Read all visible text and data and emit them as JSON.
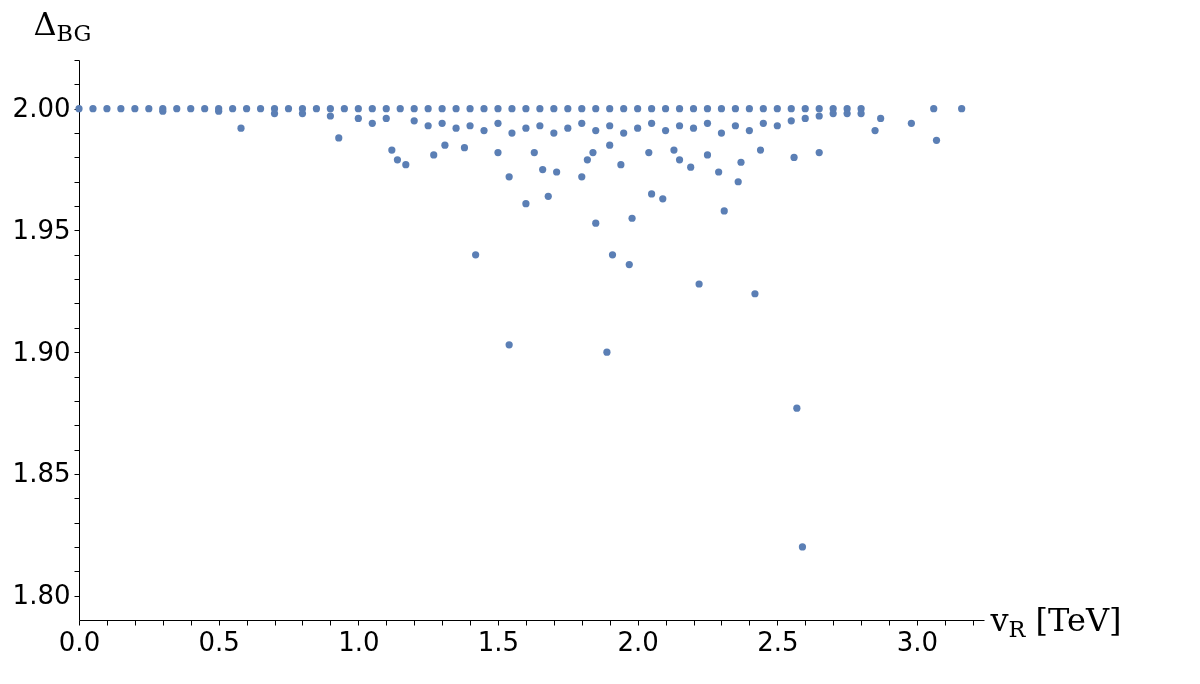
{
  "chart_data": {
    "type": "scatter",
    "xlabel": "v$_{R}$ [TeV]",
    "ylabel": "Δ$_{BG}$",
    "xlim": [
      0,
      3.24
    ],
    "ylim": [
      1.79,
      2.02
    ],
    "xticks": [
      {
        "value": 0,
        "label": "0.0"
      },
      {
        "value": 0.1,
        "label": null
      },
      {
        "value": 0.2,
        "label": null
      },
      {
        "value": 0.3,
        "label": null
      },
      {
        "value": 0.4,
        "label": null
      },
      {
        "value": 0.5,
        "label": "0.5"
      },
      {
        "value": 0.6,
        "label": null
      },
      {
        "value": 0.7,
        "label": null
      },
      {
        "value": 0.8,
        "label": null
      },
      {
        "value": 0.9,
        "label": null
      },
      {
        "value": 1,
        "label": "1.0"
      },
      {
        "value": 1.1,
        "label": null
      },
      {
        "value": 1.2,
        "label": null
      },
      {
        "value": 1.3,
        "label": null
      },
      {
        "value": 1.4,
        "label": null
      },
      {
        "value": 1.5,
        "label": "1.5"
      },
      {
        "value": 1.6,
        "label": null
      },
      {
        "value": 1.7,
        "label": null
      },
      {
        "value": 1.8,
        "label": null
      },
      {
        "value": 1.9,
        "label": null
      },
      {
        "value": 2,
        "label": "2.0"
      },
      {
        "value": 2.1,
        "label": null
      },
      {
        "value": 2.2,
        "label": null
      },
      {
        "value": 2.3,
        "label": null
      },
      {
        "value": 2.4,
        "label": null
      },
      {
        "value": 2.5,
        "label": "2.5"
      },
      {
        "value": 2.6,
        "label": null
      },
      {
        "value": 2.7,
        "label": null
      },
      {
        "value": 2.8,
        "label": null
      },
      {
        "value": 2.9,
        "label": null
      },
      {
        "value": 3,
        "label": "3.0"
      },
      {
        "value": 3.1,
        "label": null
      },
      {
        "value": 3.2,
        "label": null
      }
    ],
    "yticks": [
      {
        "value": 1.8,
        "label": "1.80"
      },
      {
        "value": 1.81,
        "label": null
      },
      {
        "value": 1.82,
        "label": null
      },
      {
        "value": 1.83,
        "label": null
      },
      {
        "value": 1.84,
        "label": null
      },
      {
        "value": 1.85,
        "label": "1.85"
      },
      {
        "value": 1.86,
        "label": null
      },
      {
        "value": 1.87,
        "label": null
      },
      {
        "value": 1.88,
        "label": null
      },
      {
        "value": 1.89,
        "label": null
      },
      {
        "value": 1.9,
        "label": "1.90"
      },
      {
        "value": 1.91,
        "label": null
      },
      {
        "value": 1.92,
        "label": null
      },
      {
        "value": 1.93,
        "label": null
      },
      {
        "value": 1.94,
        "label": null
      },
      {
        "value": 1.95,
        "label": "1.95"
      },
      {
        "value": 1.96,
        "label": null
      },
      {
        "value": 1.97,
        "label": null
      },
      {
        "value": 1.98,
        "label": null
      },
      {
        "value": 1.99,
        "label": null
      },
      {
        "value": 2,
        "label": "2.00"
      },
      {
        "value": 2.01,
        "label": null
      },
      {
        "value": 2.02,
        "label": null
      }
    ],
    "grid": false,
    "legend": false,
    "marker": "circle",
    "series": [
      {
        "color": "#5b7fb5",
        "x": [
          0,
          0.05,
          0.1,
          0.15,
          0.2,
          0.25,
          0.3,
          0.35,
          0.4,
          0.45,
          0.5,
          0.55,
          0.6,
          0.65,
          0.7,
          0.75,
          0.8,
          0.85,
          0.9,
          0.95,
          1,
          1.05,
          1.1,
          1.15,
          1.2,
          1.25,
          1.3,
          1.35,
          1.4,
          1.45,
          1.5,
          1.55,
          1.6,
          1.65,
          1.7,
          1.75,
          1.8,
          1.85,
          1.9,
          1.95,
          2,
          2.05,
          2.1,
          2.15,
          2.2,
          2.25,
          2.3,
          2.35,
          2.4,
          2.45,
          2.5,
          2.55,
          2.6,
          2.65,
          2.7,
          2.75,
          2.8,
          0.3,
          0.5,
          0.7,
          0.8,
          0.9,
          1,
          1.05,
          1.1,
          1.2,
          1.25,
          1.3,
          1.35,
          1.4,
          1.45,
          1.5,
          1.55,
          1.6,
          1.65,
          1.7,
          1.75,
          1.8,
          1.85,
          1.9,
          1.95,
          2,
          2.05,
          2.1,
          2.15,
          2.2,
          2.25,
          2.3,
          2.35,
          2.4,
          2.45,
          2.5,
          2.55,
          2.6,
          2.65,
          2.7,
          2.75,
          0.58,
          0.93,
          1.12,
          1.14,
          1.17,
          1.27,
          1.31,
          1.38,
          1.5,
          1.54,
          1.6,
          1.63,
          1.66,
          1.68,
          1.71,
          1.8,
          1.82,
          1.84,
          1.9,
          1.94,
          2.04,
          2.13,
          2.15,
          2.19,
          2.25,
          2.29,
          2.37,
          2.36,
          2.44,
          2.56,
          2.65,
          2.85,
          3.07,
          2.98,
          3.06,
          3.16,
          2.8,
          2.87,
          1.42,
          1.54,
          1.85,
          1.91,
          1.97,
          1.98,
          1.89,
          2.05,
          2.09,
          2.22,
          2.31,
          2.42,
          2.57,
          2.59
        ],
        "values": [
          2,
          2,
          2,
          2,
          2,
          2,
          2,
          2,
          2,
          2,
          2,
          2,
          2,
          2,
          2,
          2,
          2,
          2,
          2,
          2,
          2,
          2,
          2,
          2,
          2,
          2,
          2,
          2,
          2,
          2,
          2,
          2,
          2,
          2,
          2,
          2,
          2,
          2,
          2,
          2,
          2,
          2,
          2,
          2,
          2,
          2,
          2,
          2,
          2,
          2,
          2,
          2,
          2,
          2,
          2,
          2,
          2,
          1.999,
          1.999,
          1.998,
          1.998,
          1.997,
          1.996,
          1.994,
          1.996,
          1.995,
          1.993,
          1.994,
          1.992,
          1.993,
          1.991,
          1.994,
          1.99,
          1.992,
          1.993,
          1.99,
          1.992,
          1.994,
          1.991,
          1.993,
          1.99,
          1.992,
          1.994,
          1.991,
          1.993,
          1.992,
          1.994,
          1.99,
          1.993,
          1.991,
          1.994,
          1.993,
          1.995,
          1.996,
          1.997,
          1.998,
          1.998,
          1.992,
          1.988,
          1.983,
          1.979,
          1.977,
          1.981,
          1.985,
          1.984,
          1.982,
          1.972,
          1.961,
          1.982,
          1.975,
          1.964,
          1.974,
          1.972,
          1.979,
          1.982,
          1.985,
          1.977,
          1.982,
          1.983,
          1.979,
          1.976,
          1.981,
          1.974,
          1.978,
          1.97,
          1.983,
          1.98,
          1.982,
          1.991,
          1.987,
          1.994,
          2,
          2,
          1.998,
          1.996,
          1.94,
          1.903,
          1.953,
          1.94,
          1.936,
          1.955,
          1.9,
          1.965,
          1.963,
          1.928,
          1.958,
          1.924,
          1.877,
          1.82
        ]
      }
    ]
  }
}
